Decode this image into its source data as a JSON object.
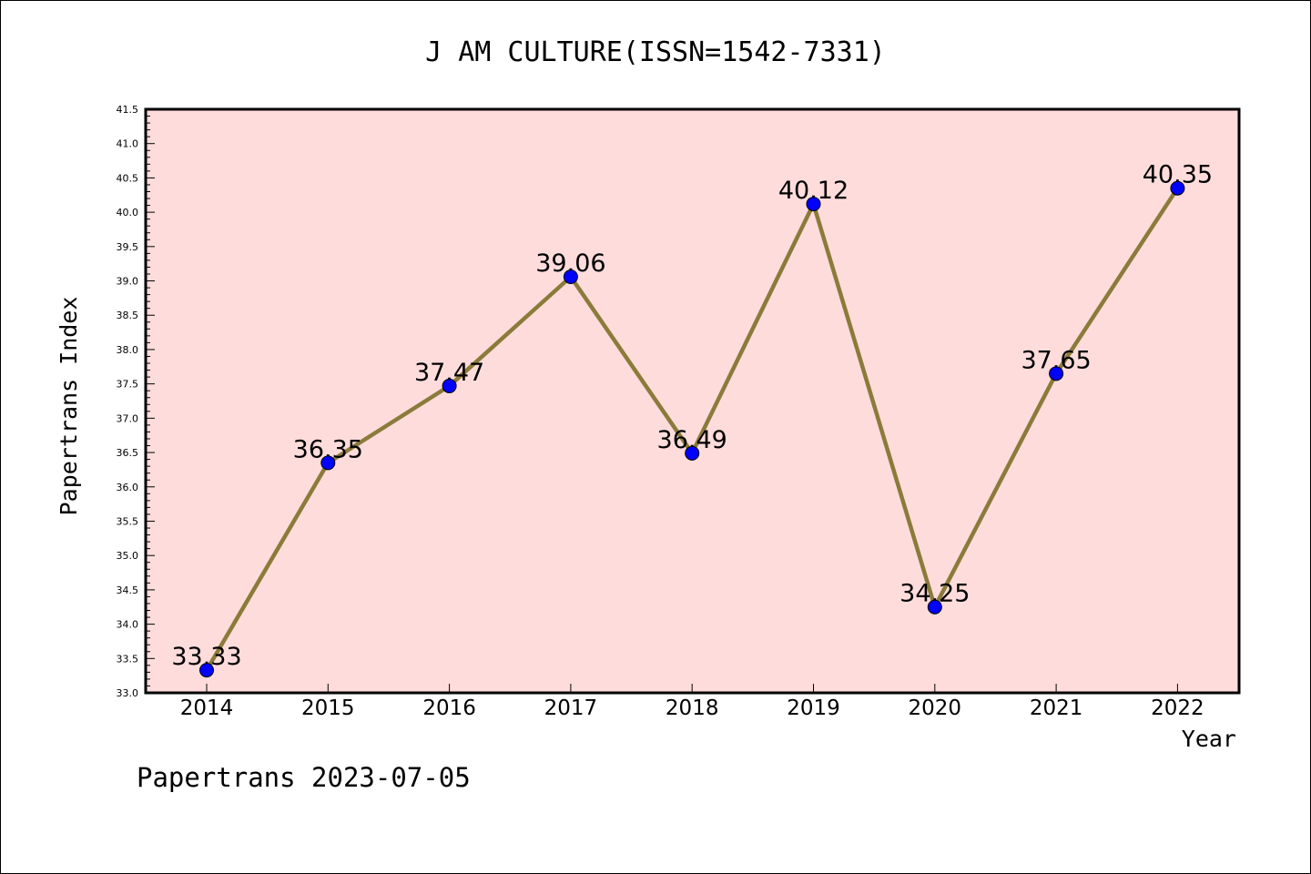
{
  "chart_data": {
    "type": "line",
    "title": "J AM CULTURE(ISSN=1542-7331)",
    "xlabel": "Year",
    "ylabel": "Papertrans Index",
    "footer": "Papertrans 2023-07-05",
    "categories": [
      "2014",
      "2015",
      "2016",
      "2017",
      "2018",
      "2019",
      "2020",
      "2021",
      "2022"
    ],
    "values": [
      33.33,
      36.35,
      37.47,
      39.06,
      36.49,
      40.12,
      34.25,
      37.65,
      40.35
    ],
    "value_labels": [
      "33.33",
      "36.35",
      "37.47",
      "39.06",
      "36.49",
      "40.12",
      "34.25",
      "37.65",
      "40.35"
    ],
    "ylim": [
      33.0,
      41.5
    ],
    "yticks": [
      "33.0",
      "33.5",
      "34.0",
      "34.5",
      "35.0",
      "35.5",
      "36.0",
      "36.5",
      "37.0",
      "37.5",
      "38.0",
      "38.5",
      "39.0",
      "39.5",
      "40.0",
      "40.5",
      "41.0",
      "41.5"
    ],
    "grid": false,
    "colors": {
      "plot_background": "#ffdcdc",
      "line": "#8b7b3a",
      "marker": "#0000ff"
    }
  }
}
